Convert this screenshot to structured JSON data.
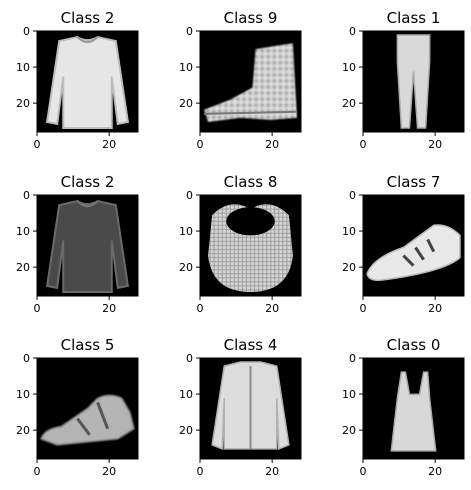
{
  "chart_data": {
    "type": "image-grid",
    "rows": 3,
    "cols": 3,
    "image_size": [
      28,
      28
    ],
    "colormap": "gray",
    "xlim": [
      0,
      28
    ],
    "ylim": [
      0,
      28
    ],
    "xticks": [
      0,
      20
    ],
    "yticks": [
      0,
      10,
      20
    ],
    "panels": [
      {
        "title": "Class 2",
        "label": 2,
        "depicts": "long-sleeve top"
      },
      {
        "title": "Class 9",
        "label": 9,
        "depicts": "ankle boot"
      },
      {
        "title": "Class 1",
        "label": 1,
        "depicts": "trousers"
      },
      {
        "title": "Class 2",
        "label": 2,
        "depicts": "long-sleeve top"
      },
      {
        "title": "Class 8",
        "label": 8,
        "depicts": "bag"
      },
      {
        "title": "Class 7",
        "label": 7,
        "depicts": "sneaker"
      },
      {
        "title": "Class 5",
        "label": 5,
        "depicts": "sandal"
      },
      {
        "title": "Class 4",
        "label": 4,
        "depicts": "coat"
      },
      {
        "title": "Class 0",
        "label": 0,
        "depicts": "tank top"
      }
    ]
  }
}
